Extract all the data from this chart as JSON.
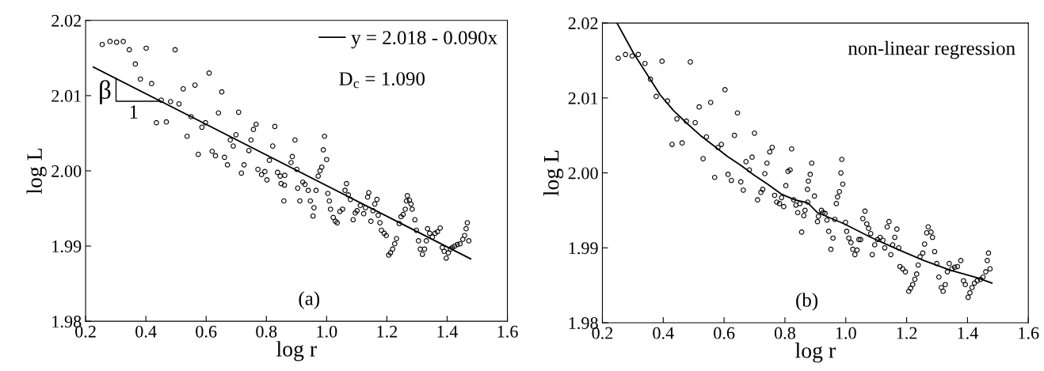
{
  "chart_data": [
    {
      "type": "scatter",
      "xlabel": "log r",
      "ylabel": "log L",
      "legend": "top right",
      "xlim": [
        0.2,
        1.6
      ],
      "ylim": [
        1.98,
        2.02
      ],
      "xticks": [
        {
          "value": 0.2,
          "label": "0.2"
        },
        {
          "value": 0.4,
          "label": "0.4"
        },
        {
          "value": 0.6,
          "label": "0.6"
        },
        {
          "value": 0.8,
          "label": "0.8"
        },
        {
          "value": 1.0,
          "label": "1.0"
        },
        {
          "value": 1.2,
          "label": "1.2"
        },
        {
          "value": 1.4,
          "label": "1.4"
        },
        {
          "value": 1.6,
          "label": "1.6"
        }
      ],
      "yticks": [
        {
          "value": 1.98,
          "label": "1.98"
        },
        {
          "value": 1.99,
          "label": "1.99"
        },
        {
          "value": 2.0,
          "label": "2.00"
        },
        {
          "value": 2.01,
          "label": "2.01"
        },
        {
          "value": 2.02,
          "label": "2.02"
        }
      ],
      "annotations": [
        "D$_{c}$ = 1.090",
        "(a)",
        {
          "text": "β",
          "x": 0.301,
          "y": 2.0125
        },
        "1"
      ],
      "series": [
        {
          "color": "#000000",
          "marker": "circle",
          "x": [
            0.255,
            0.281,
            0.303,
            0.325,
            0.345,
            0.365,
            0.382,
            0.401,
            0.419,
            0.435,
            0.451,
            0.468,
            0.482,
            0.497,
            0.51,
            0.524,
            0.537,
            0.55,
            0.563,
            0.574,
            0.586,
            0.598,
            0.61,
            0.62,
            0.631,
            0.641,
            0.652,
            0.661,
            0.671,
            0.68,
            0.69,
            0.699,
            0.708,
            0.717,
            0.726,
            0.742,
            0.749,
            0.757,
            0.766,
            0.772,
            0.784,
            0.795,
            0.802,
            0.81,
            0.821,
            0.828,
            0.837,
            0.846,
            0.849,
            0.858,
            0.86,
            0.861,
            0.882,
            0.886,
            0.895,
            0.901,
            0.904,
            0.911,
            0.921,
            0.928,
            0.939,
            0.946,
            0.955,
            0.958,
            0.965,
            0.972,
            0.978,
            0.984,
            0.989,
            0.993,
            1.0,
            1.004,
            1.009,
            1.013,
            1.022,
            1.029,
            1.035,
            1.044,
            1.053,
            1.061,
            1.066,
            1.072,
            1.079,
            1.088,
            1.095,
            1.101,
            1.112,
            1.123,
            1.129,
            1.136,
            1.14,
            1.147,
            1.154,
            1.16,
            1.167,
            1.171,
            1.177,
            1.182,
            1.191,
            1.198,
            1.206,
            1.212,
            1.219,
            1.226,
            1.232,
            1.241,
            1.247,
            1.254,
            1.261,
            1.265,
            1.268,
            1.275,
            1.28,
            1.284,
            1.293,
            1.298,
            1.305,
            1.311,
            1.318,
            1.325,
            1.331,
            1.335,
            1.342,
            1.351,
            1.36,
            1.368,
            1.377,
            1.384,
            1.39,
            1.397,
            1.404,
            1.411,
            1.417,
            1.425,
            1.434,
            1.443,
            1.452,
            1.458,
            1.463,
            1.467,
            1.472
          ],
          "values": [
            2.0168,
            2.0172,
            2.0171,
            2.0172,
            2.0161,
            2.0142,
            2.0122,
            2.0163,
            2.0116,
            2.0064,
            2.0094,
            2.0065,
            2.0092,
            2.0161,
            2.0089,
            2.0109,
            2.0046,
            2.0072,
            2.0114,
            2.0022,
            2.0058,
            2.0064,
            2.013,
            2.0026,
            2.002,
            2.0077,
            2.0105,
            2.0018,
            2.0008,
            2.0041,
            2.0033,
            2.0048,
            2.0078,
            1.9997,
            2.0008,
            2.0027,
            2.0041,
            2.0055,
            2.0062,
            2.0002,
            1.9995,
            1.9999,
            1.9988,
            2.0014,
            2.0033,
            2.0059,
            1.9998,
            1.9993,
            1.9983,
            1.996,
            1.9981,
            1.9994,
            2.0011,
            2.0019,
            2.0041,
            2.0002,
            1.9977,
            1.996,
            1.9985,
            1.9982,
            1.9974,
            1.996,
            1.994,
            1.9951,
            1.9974,
            1.9993,
            2.0,
            2.0005,
            2.0028,
            2.0046,
            2.0015,
            1.997,
            1.996,
            1.9949,
            1.9938,
            1.9933,
            1.9931,
            1.9946,
            1.9949,
            1.9974,
            1.9983,
            1.9968,
            1.9962,
            1.9935,
            1.9944,
            1.9947,
            1.9954,
            1.9943,
            1.9951,
            1.9965,
            1.9971,
            1.9933,
            1.9947,
            1.9956,
            1.9962,
            1.9941,
            1.9931,
            1.9921,
            1.9917,
            1.9914,
            1.9888,
            1.9891,
            1.9896,
            1.9903,
            1.991,
            1.993,
            1.9939,
            1.9942,
            1.9949,
            1.996,
            1.9967,
            1.9961,
            1.9956,
            1.9949,
            1.9935,
            1.9921,
            1.9907,
            1.9896,
            1.9889,
            1.9896,
            1.9907,
            1.9923,
            1.9917,
            1.9912,
            1.9917,
            1.9919,
            1.9924,
            1.9898,
            1.9893,
            1.9884,
            1.9891,
            1.9896,
            1.9898,
            1.99,
            1.9902,
            1.9903,
            1.9909,
            1.9914,
            1.9923,
            1.9931,
            1.9907
          ]
        },
        {
          "type": "line",
          "name": "y = 2.018 - 0.090x",
          "color": "#000000",
          "line_style": "solid",
          "x": [
            0.226,
            1.478
          ],
          "values": [
            2.0138,
            1.9883
          ]
        }
      ]
    },
    {
      "type": "scatter",
      "xlabel": "log r",
      "ylabel": "log L",
      "xlim": [
        0.2,
        1.6
      ],
      "ylim": [
        1.98,
        2.02
      ],
      "xticks": [
        {
          "value": 0.2,
          "label": "0.2"
        },
        {
          "value": 0.4,
          "label": "0.4"
        },
        {
          "value": 0.6,
          "label": "0.6"
        },
        {
          "value": 0.8,
          "label": "0.8"
        },
        {
          "value": 1.0,
          "label": "1.0"
        },
        {
          "value": 1.2,
          "label": "1.2"
        },
        {
          "value": 1.4,
          "label": "1.4"
        },
        {
          "value": 1.6,
          "label": "1.6"
        }
      ],
      "yticks": [
        {
          "value": 1.98,
          "label": "1.98"
        },
        {
          "value": 1.99,
          "label": "1.99"
        },
        {
          "value": 2.0,
          "label": "2.00"
        },
        {
          "value": 2.01,
          "label": "2.01"
        },
        {
          "value": 2.02,
          "label": "2.02"
        }
      ],
      "annotations": [
        "non-linear regression",
        "(b)"
      ],
      "series": [
        {
          "color": "#000000",
          "marker": "circle",
          "x": [
            0.252,
            0.276,
            0.298,
            0.318,
            0.34,
            0.358,
            0.377,
            0.396,
            0.414,
            0.429,
            0.445,
            0.462,
            0.476,
            0.489,
            0.505,
            0.518,
            0.531,
            0.542,
            0.556,
            0.569,
            0.58,
            0.591,
            0.603,
            0.613,
            0.624,
            0.634,
            0.644,
            0.655,
            0.663,
            0.672,
            0.683,
            0.692,
            0.7,
            0.71,
            0.721,
            0.727,
            0.734,
            0.741,
            0.75,
            0.758,
            0.766,
            0.773,
            0.782,
            0.789,
            0.796,
            0.803,
            0.81,
            0.817,
            0.822,
            0.829,
            0.836,
            0.842,
            0.849,
            0.855,
            0.862,
            0.866,
            0.875,
            0.874,
            0.877,
            0.883,
            0.888,
            0.897,
            0.907,
            0.91,
            0.92,
            0.925,
            0.932,
            0.938,
            0.944,
            0.951,
            0.958,
            0.964,
            0.969,
            0.973,
            0.979,
            0.984,
            0.987,
            0.99,
            0.999,
            1.003,
            1.01,
            1.017,
            1.023,
            1.03,
            1.037,
            1.043,
            1.049,
            1.056,
            1.063,
            1.069,
            1.075,
            1.082,
            1.087,
            1.095,
            1.104,
            1.113,
            1.122,
            1.128,
            1.136,
            1.142,
            1.148,
            1.154,
            1.161,
            1.168,
            1.174,
            1.178,
            1.187,
            1.196,
            1.207,
            1.213,
            1.22,
            1.227,
            1.233,
            1.238,
            1.244,
            1.253,
            1.259,
            1.266,
            1.271,
            1.28,
            1.285,
            1.292,
            1.299,
            1.306,
            1.314,
            1.32,
            1.327,
            1.334,
            1.34,
            1.349,
            1.358,
            1.367,
            1.378,
            1.387,
            1.393,
            1.402,
            1.408,
            1.415,
            1.423,
            1.432,
            1.443,
            1.451,
            1.46,
            1.465,
            1.469,
            1.474
          ],
          "values": [
            2.0153,
            2.0158,
            2.0156,
            2.0158,
            2.0146,
            2.0125,
            2.0102,
            2.0149,
            2.0096,
            2.0038,
            2.0072,
            2.004,
            2.0069,
            2.0148,
            2.0067,
            2.0088,
            2.0019,
            2.0048,
            2.0094,
            1.9994,
            2.0034,
            2.0038,
            2.0111,
            1.9998,
            1.999,
            2.005,
            2.008,
            1.9988,
            1.9977,
            2.0015,
            2.0004,
            2.0021,
            2.0053,
            1.9964,
            1.9974,
            1.9978,
            1.9999,
            2.0013,
            2.0028,
            2.0034,
            1.997,
            1.9961,
            1.9959,
            1.9967,
            1.9955,
            1.9983,
            2.0002,
            2.0004,
            2.0032,
            1.9964,
            1.9957,
            1.9947,
            1.9959,
            1.9921,
            1.9943,
            1.995,
            1.9961,
            1.9978,
            1.9989,
            1.9998,
            2.0013,
            1.9969,
            1.9935,
            1.9942,
            1.995,
            1.9947,
            1.9946,
            1.9937,
            1.9922,
            1.9898,
            1.9913,
            1.9938,
            1.9959,
            1.9968,
            1.9975,
            2.0,
            2.0018,
            1.9985,
            1.9934,
            1.9922,
            1.9913,
            1.9907,
            1.9898,
            1.9891,
            1.9897,
            1.9911,
            1.9911,
            1.9939,
            1.9949,
            1.9932,
            1.9926,
            1.9919,
            1.9891,
            1.9904,
            1.9911,
            1.9914,
            1.991,
            1.99,
            1.9928,
            1.9935,
            1.9891,
            1.9904,
            1.9914,
            1.9925,
            1.99,
            1.9875,
            1.9872,
            1.9868,
            1.9842,
            1.9846,
            1.9851,
            1.9858,
            1.9865,
            1.9877,
            1.9888,
            1.9893,
            1.9905,
            1.992,
            1.9928,
            1.9921,
            1.9914,
            1.9895,
            1.9879,
            1.9861,
            1.9847,
            1.9842,
            1.9851,
            1.9868,
            1.9879,
            1.9872,
            1.9874,
            1.9875,
            1.9883,
            1.9856,
            1.9851,
            1.9834,
            1.984,
            1.9847,
            1.9853,
            1.9856,
            1.9858,
            1.9861,
            1.9868,
            1.9883,
            1.9893,
            1.9872
          ]
        },
        {
          "type": "line",
          "color": "#000000",
          "line_style": "solid",
          "x": [
            0.248,
            0.302,
            0.346,
            0.39,
            0.434,
            0.478,
            0.522,
            0.567,
            0.611,
            0.655,
            0.699,
            0.743,
            0.787,
            0.832,
            0.875,
            0.907,
            0.995,
            1.082,
            1.17,
            1.257,
            1.344,
            1.432,
            1.48
          ],
          "values": [
            2.02,
            2.016,
            2.0132,
            2.0104,
            2.0083,
            2.0066,
            2.005,
            2.0036,
            2.0022,
            2.001,
            1.9997,
            1.9985,
            1.9972,
            1.9964,
            1.996,
            1.9947,
            1.9932,
            1.9914,
            1.9898,
            1.9883,
            1.987,
            1.986,
            1.9853
          ]
        }
      ]
    }
  ]
}
